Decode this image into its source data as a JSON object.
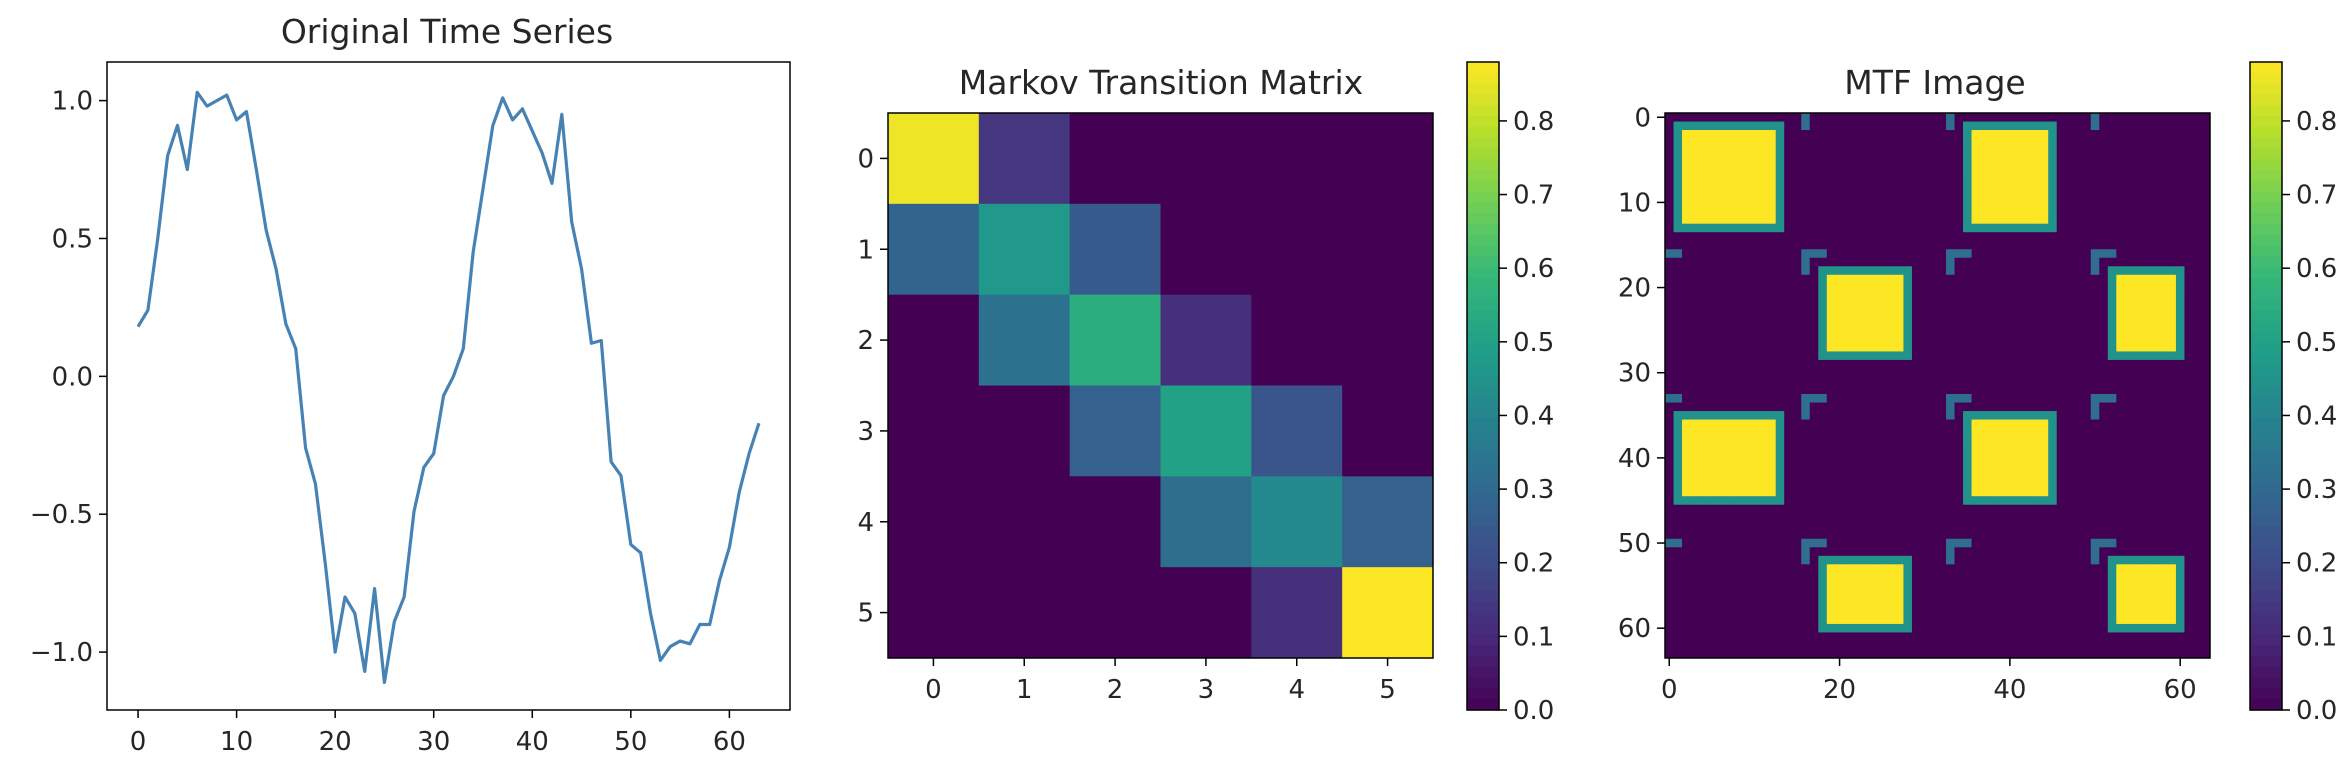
{
  "chart_data": [
    {
      "type": "line",
      "title": "Original Time Series",
      "xlabel": "",
      "ylabel": "",
      "x_ticks": [
        0,
        10,
        20,
        30,
        40,
        50,
        60
      ],
      "y_ticks": [
        -1.0,
        -0.5,
        0.0,
        0.5,
        1.0
      ],
      "x_tick_labels": [
        "0",
        "10",
        "20",
        "30",
        "40",
        "50",
        "60"
      ],
      "y_tick_labels": [
        "−1.0",
        "−0.5",
        "0.0",
        "0.5",
        "1.0"
      ],
      "xlim": [
        -3.15,
        66.15
      ],
      "ylim": [
        -1.21,
        1.14
      ],
      "grid": false,
      "color": "#4682b4",
      "series": [
        {
          "x": [
            0,
            1,
            2,
            3,
            4,
            5,
            6,
            7,
            8,
            9,
            10,
            11,
            12,
            13,
            14,
            15,
            16,
            17,
            18,
            19,
            20,
            21,
            22,
            23,
            24,
            25,
            26,
            27,
            28,
            29,
            30,
            31,
            32,
            33,
            34,
            35,
            36,
            37,
            38,
            39,
            40,
            41,
            42,
            43,
            44,
            45,
            46,
            47,
            48,
            49,
            50,
            51,
            52,
            53,
            54,
            55,
            56,
            57,
            58,
            59,
            60,
            61,
            62,
            63
          ],
          "y": [
            0.18,
            0.24,
            0.5,
            0.8,
            0.91,
            0.75,
            1.03,
            0.98,
            1.0,
            1.02,
            0.93,
            0.96,
            0.75,
            0.53,
            0.39,
            0.19,
            0.1,
            -0.26,
            -0.39,
            -0.68,
            -1.0,
            -0.8,
            -0.86,
            -1.07,
            -0.77,
            -1.11,
            -0.89,
            -0.8,
            -0.49,
            -0.33,
            -0.28,
            -0.07,
            0.0,
            0.1,
            0.45,
            0.68,
            0.91,
            1.01,
            0.93,
            0.97,
            0.89,
            0.81,
            0.7,
            0.95,
            0.56,
            0.39,
            0.12,
            0.13,
            -0.31,
            -0.36,
            -0.61,
            -0.64,
            -0.86,
            -1.03,
            -0.98,
            -0.96,
            -0.97,
            -0.9,
            -0.9,
            -0.74,
            -0.62,
            -0.42,
            -0.28,
            -0.17
          ]
        }
      ]
    },
    {
      "type": "heatmap",
      "title": "Markov Transition Matrix",
      "x_tick_labels": [
        "0",
        "1",
        "2",
        "3",
        "4",
        "5"
      ],
      "y_tick_labels": [
        "0",
        "1",
        "2",
        "3",
        "4",
        "5"
      ],
      "colormap": "viridis",
      "vmin": 0.0,
      "vmax": 0.88,
      "colorbar_ticks": [
        0.0,
        0.1,
        0.2,
        0.3,
        0.4,
        0.5,
        0.6,
        0.7,
        0.8
      ],
      "colorbar_tick_labels": [
        "0.0",
        "0.1",
        "0.2",
        "0.3",
        "0.4",
        "0.5",
        "0.6",
        "0.7",
        "0.8"
      ],
      "matrix": [
        [
          0.86,
          0.14,
          0.0,
          0.0,
          0.0,
          0.0
        ],
        [
          0.28,
          0.47,
          0.25,
          0.0,
          0.0,
          0.0
        ],
        [
          0.0,
          0.33,
          0.55,
          0.12,
          0.0,
          0.0
        ],
        [
          0.0,
          0.0,
          0.27,
          0.5,
          0.23,
          0.0
        ],
        [
          0.0,
          0.0,
          0.0,
          0.32,
          0.42,
          0.27
        ],
        [
          0.0,
          0.0,
          0.0,
          0.0,
          0.12,
          0.88
        ]
      ]
    },
    {
      "type": "heatmap",
      "title": "MTF Image",
      "size": 64,
      "x_ticks": [
        0,
        20,
        40,
        60
      ],
      "y_ticks": [
        0,
        10,
        20,
        30,
        40,
        50,
        60
      ],
      "x_tick_labels": [
        "0",
        "20",
        "40",
        "60"
      ],
      "y_tick_labels": [
        "0",
        "10",
        "20",
        "30",
        "40",
        "50",
        "60"
      ],
      "colormap": "viridis",
      "vmin": 0.0,
      "vmax": 0.88,
      "colorbar_ticks": [
        0.0,
        0.1,
        0.2,
        0.3,
        0.4,
        0.5,
        0.6,
        0.7,
        0.8
      ],
      "colorbar_tick_labels": [
        "0.0",
        "0.1",
        "0.2",
        "0.3",
        "0.4",
        "0.5",
        "0.6",
        "0.7",
        "0.8"
      ],
      "bright_blocks": [
        {
          "rows": [
            2,
            12
          ],
          "cols": [
            2,
            12
          ],
          "value": 0.88
        },
        {
          "rows": [
            2,
            12
          ],
          "cols": [
            36,
            44
          ],
          "value": 0.88
        },
        {
          "rows": [
            19,
            27
          ],
          "cols": [
            19,
            27
          ],
          "value": 0.88
        },
        {
          "rows": [
            19,
            27
          ],
          "cols": [
            53,
            59
          ],
          "value": 0.88
        },
        {
          "rows": [
            36,
            44
          ],
          "cols": [
            2,
            12
          ],
          "value": 0.88
        },
        {
          "rows": [
            36,
            44
          ],
          "cols": [
            36,
            44
          ],
          "value": 0.88
        },
        {
          "rows": [
            53,
            59
          ],
          "cols": [
            19,
            27
          ],
          "value": 0.88
        },
        {
          "rows": [
            53,
            59
          ],
          "cols": [
            53,
            59
          ],
          "value": 0.88
        }
      ],
      "edge_value": 0.45,
      "background_value": 0.0
    }
  ]
}
